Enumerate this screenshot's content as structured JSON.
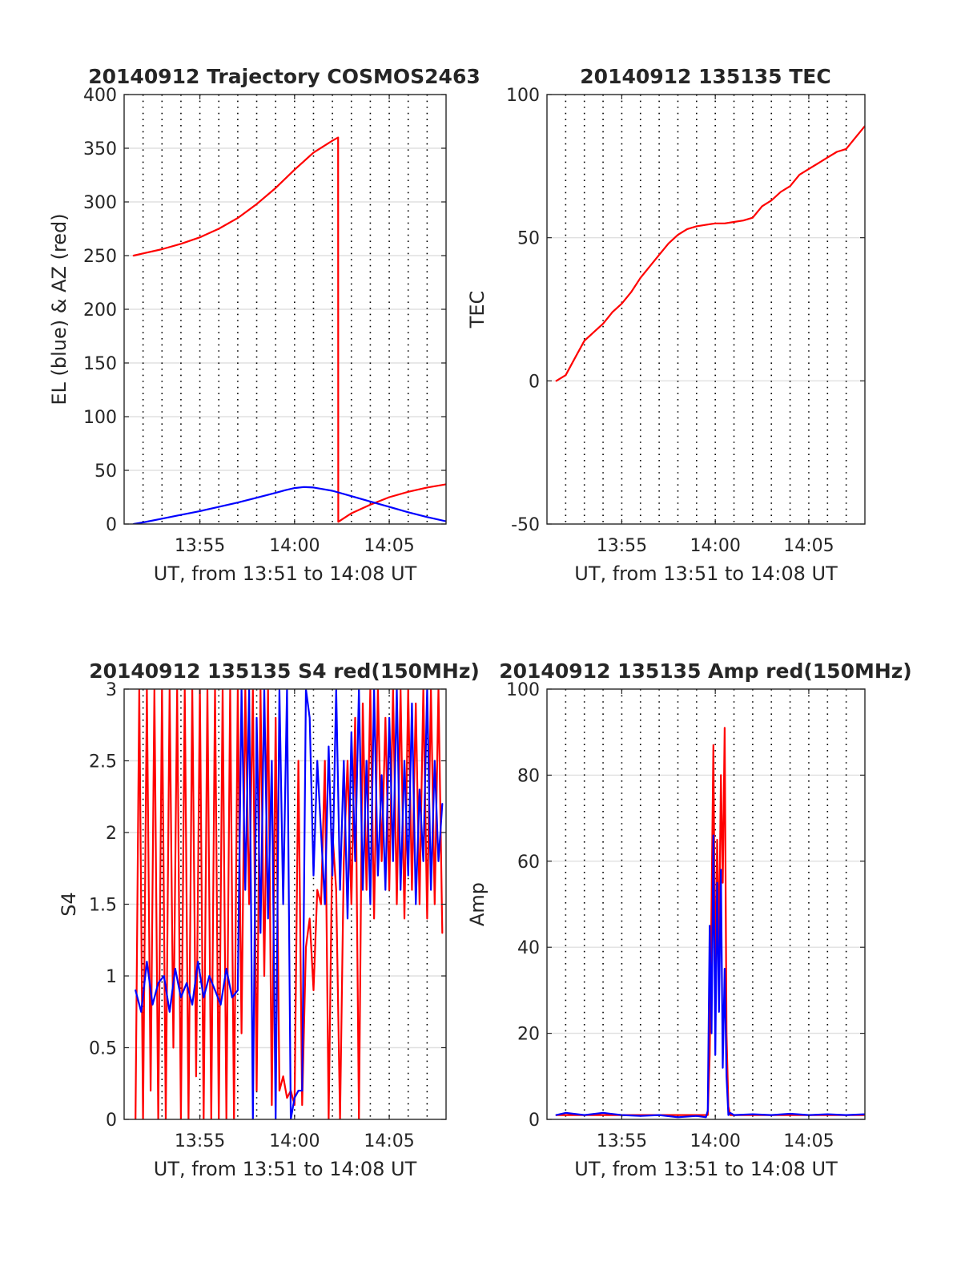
{
  "figure": {
    "background": "#ffffff"
  },
  "colors": {
    "red": "#ff0000",
    "blue": "#0000ff",
    "grid_dots": "#000000",
    "grid_lines": "#e0e0e0",
    "axis": "#262626"
  },
  "chart_data": [
    {
      "id": "trajectory",
      "type": "line",
      "title": "20140912 Trajectory COSMOS2463",
      "xlabel": "UT, from 13:51 to 14:08 UT",
      "ylabel": "EL (blue) & AZ (red)",
      "xlim": [
        831,
        848
      ],
      "ylim": [
        0,
        400
      ],
      "x_ticks": [
        835,
        840,
        845
      ],
      "x_tick_labels": [
        "13:55",
        "14:00",
        "14:05"
      ],
      "y_ticks": [
        0,
        50,
        100,
        150,
        200,
        250,
        300,
        350,
        400
      ],
      "y_tick_labels": [
        "0",
        "50",
        "100",
        "150",
        "200",
        "250",
        "300",
        "350",
        "400"
      ],
      "x_minor_grid_step": 1,
      "y_grid": true,
      "series": [
        {
          "color": "red",
          "x": [
            831.5,
            832,
            833,
            834,
            835,
            836,
            837,
            838,
            839,
            840,
            841,
            842,
            842.3,
            842.31,
            843,
            844,
            845,
            846,
            847,
            848
          ],
          "values": [
            250,
            252,
            256,
            261,
            267,
            275,
            285,
            298,
            313,
            330,
            346,
            357,
            360,
            2,
            10,
            18,
            25,
            30,
            34,
            37
          ]
        },
        {
          "color": "blue",
          "x": [
            831.5,
            832,
            833,
            834,
            835,
            836,
            837,
            838,
            839,
            839.5,
            840,
            840.5,
            841,
            842,
            843,
            844,
            845,
            846,
            847,
            848
          ],
          "values": [
            0,
            1.5,
            5,
            8.5,
            12,
            16,
            20,
            24.5,
            29,
            31.5,
            33.5,
            34.5,
            34,
            31,
            26,
            21,
            16,
            11,
            6.5,
            2.5
          ]
        }
      ]
    },
    {
      "id": "tec",
      "type": "line",
      "title": "20140912 135135 TEC",
      "xlabel": "UT, from 13:51 to 14:08 UT",
      "ylabel": "TEC",
      "xlim": [
        831,
        848
      ],
      "ylim": [
        -50,
        100
      ],
      "x_ticks": [
        835,
        840,
        845
      ],
      "x_tick_labels": [
        "13:55",
        "14:00",
        "14:05"
      ],
      "y_ticks": [
        -50,
        0,
        50,
        100
      ],
      "y_tick_labels": [
        "-50",
        "0",
        "50",
        "100"
      ],
      "x_minor_grid_step": 1,
      "y_grid": true,
      "series": [
        {
          "color": "red",
          "x": [
            831.5,
            832,
            832.5,
            833,
            833.5,
            834,
            834.5,
            835,
            835.5,
            836,
            836.5,
            837,
            837.5,
            838,
            838.5,
            839,
            839.5,
            840,
            840.5,
            841,
            841.5,
            842,
            842.5,
            843,
            843.5,
            844,
            844.5,
            845,
            845.5,
            846,
            846.5,
            847,
            847.5,
            848
          ],
          "values": [
            0,
            2,
            8,
            14,
            17,
            20,
            24,
            27,
            31,
            36,
            40,
            44,
            48,
            51,
            53,
            54,
            54.5,
            55,
            55,
            55.5,
            56,
            57,
            61,
            63,
            66,
            68,
            72,
            74,
            76,
            78,
            80,
            81,
            85,
            89
          ]
        }
      ]
    },
    {
      "id": "s4",
      "type": "line",
      "title": "20140912 135135 S4 red(150MHz)",
      "xlabel": "UT, from 13:51 to 14:08 UT",
      "ylabel": "S4",
      "xlim": [
        831,
        848
      ],
      "ylim": [
        0,
        3
      ],
      "x_ticks": [
        835,
        840,
        845
      ],
      "x_tick_labels": [
        "13:55",
        "14:00",
        "14:05"
      ],
      "y_ticks": [
        0,
        0.5,
        1,
        1.5,
        2,
        2.5,
        3
      ],
      "y_tick_labels": [
        "0",
        "0.5",
        "1",
        "1.5",
        "2",
        "2.5",
        "3"
      ],
      "x_minor_grid_step": 1,
      "y_grid": true,
      "series": [
        {
          "color": "red",
          "x": [
            831.6,
            831.8,
            832,
            832.2,
            832.4,
            832.6,
            832.8,
            833,
            833.2,
            833.4,
            833.6,
            833.8,
            834,
            834.2,
            834.4,
            834.6,
            834.8,
            835,
            835.2,
            835.4,
            835.6,
            835.8,
            836,
            836.2,
            836.4,
            836.6,
            836.8,
            837,
            837.2,
            837.4,
            837.6,
            837.8,
            838,
            838.2,
            838.4,
            838.6,
            838.8,
            839,
            839.2,
            839.4,
            839.6,
            839.8,
            840,
            840.2,
            840.4,
            840.6,
            840.8,
            841,
            841.2,
            841.4,
            841.6,
            841.8,
            842,
            842.2,
            842.4,
            842.6,
            842.8,
            843,
            843.2,
            843.4,
            843.6,
            843.8,
            844,
            844.2,
            844.4,
            844.6,
            844.8,
            845,
            845.2,
            845.4,
            845.6,
            845.8,
            846,
            846.2,
            846.4,
            846.6,
            846.8,
            847,
            847.2,
            847.4,
            847.6,
            847.8
          ],
          "values": [
            0,
            3,
            0,
            3,
            0.2,
            3,
            0,
            3,
            0,
            3,
            0.5,
            3,
            0,
            3,
            0,
            3,
            0.3,
            3,
            0,
            3,
            0,
            3,
            0,
            3,
            0,
            3,
            0,
            3,
            0.6,
            3,
            1.5,
            3,
            0.2,
            3,
            1.0,
            3,
            0.1,
            2.8,
            0.2,
            0.3,
            0.15,
            0.2,
            0.1,
            2.5,
            0.1,
            1.2,
            1.4,
            0.9,
            1.6,
            1.5,
            2.5,
            0,
            2.0,
            1.6,
            0,
            1.8,
            2.5,
            1.5,
            2.8,
            0,
            2.9,
            1.6,
            3,
            1.4,
            3,
            1.8,
            2.8,
            1.6,
            3,
            1.5,
            3,
            1.4,
            3,
            1.6,
            2.9,
            1.5,
            3,
            1.4,
            3,
            1.5,
            3,
            1.3
          ]
        },
        {
          "color": "blue",
          "x": [
            831.6,
            831.9,
            832.2,
            832.5,
            832.8,
            833.1,
            833.4,
            833.7,
            834,
            834.3,
            834.6,
            834.9,
            835.2,
            835.5,
            835.8,
            836.1,
            836.4,
            836.7,
            837,
            837.2,
            837.4,
            837.6,
            837.8,
            838,
            838.2,
            838.4,
            838.6,
            838.8,
            839,
            839.2,
            839.4,
            839.6,
            839.8,
            840,
            840.2,
            840.4,
            840.6,
            840.8,
            841,
            841.2,
            841.4,
            841.6,
            841.8,
            842,
            842.2,
            842.4,
            842.6,
            842.8,
            843,
            843.2,
            843.4,
            843.6,
            843.8,
            844,
            844.2,
            844.4,
            844.6,
            844.8,
            845,
            845.2,
            845.4,
            845.6,
            845.8,
            846,
            846.2,
            846.4,
            846.6,
            846.8,
            847,
            847.2,
            847.4,
            847.6,
            847.8
          ],
          "values": [
            0.9,
            0.75,
            1.1,
            0.8,
            0.95,
            1.0,
            0.75,
            1.05,
            0.85,
            0.95,
            0.8,
            1.1,
            0.85,
            1.0,
            0.9,
            0.8,
            1.05,
            0.85,
            0.9,
            3,
            1.6,
            3,
            0,
            2.8,
            1.3,
            3,
            1.4,
            2.5,
            0,
            3,
            1.5,
            3,
            0,
            0.15,
            0.2,
            0.2,
            3,
            2.8,
            1.7,
            2.5,
            2.0,
            1.5,
            2.6,
            1.7,
            3,
            1.6,
            2.5,
            1.4,
            2.7,
            1.8,
            3,
            1.6,
            2.5,
            1.5,
            3,
            1.7,
            2.4,
            1.6,
            2.8,
            1.8,
            3,
            1.6,
            2.5,
            1.7,
            2.9,
            1.5,
            2.3,
            1.8,
            3,
            1.6,
            2.5,
            1.8,
            2.2
          ]
        }
      ]
    },
    {
      "id": "amp",
      "type": "line",
      "title": "20140912 135135 Amp red(150MHz)",
      "xlabel": "UT, from 13:51 to 14:08 UT",
      "ylabel": "Amp",
      "xlim": [
        831,
        848
      ],
      "ylim": [
        0,
        100
      ],
      "x_ticks": [
        835,
        840,
        845
      ],
      "x_tick_labels": [
        "13:55",
        "14:00",
        "14:05"
      ],
      "y_ticks": [
        0,
        20,
        40,
        60,
        80,
        100
      ],
      "y_tick_labels": [
        "0",
        "20",
        "40",
        "60",
        "80",
        "100"
      ],
      "x_minor_grid_step": 1,
      "y_grid": true,
      "series": [
        {
          "color": "red",
          "x": [
            831.5,
            835,
            839.6,
            839.7,
            839.8,
            839.9,
            840.0,
            840.1,
            840.2,
            840.3,
            840.4,
            840.5,
            840.6,
            840.7,
            840.8,
            841,
            845,
            848
          ],
          "values": [
            1,
            1,
            1,
            15,
            50,
            87,
            30,
            65,
            40,
            80,
            55,
            91,
            20,
            3,
            1,
            1,
            1,
            1
          ]
        },
        {
          "color": "blue",
          "x": [
            831.5,
            832,
            833,
            834,
            835,
            836,
            837,
            838,
            839,
            839.5,
            839.6,
            839.7,
            839.8,
            839.9,
            840.0,
            840.1,
            840.2,
            840.3,
            840.4,
            840.5,
            840.6,
            840.7,
            840.8,
            841,
            842,
            843,
            844,
            845,
            846,
            847,
            848
          ],
          "values": [
            1,
            1.5,
            1,
            1.5,
            1,
            0.8,
            1,
            0.5,
            0.8,
            0.5,
            2,
            45,
            20,
            66,
            15,
            55,
            25,
            58,
            12,
            35,
            10,
            1,
            1.5,
            1,
            1.2,
            1,
            1.3,
            1,
            1.2,
            1,
            1.2
          ]
        }
      ]
    }
  ]
}
